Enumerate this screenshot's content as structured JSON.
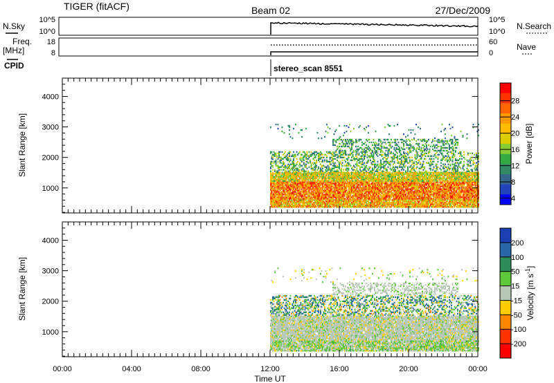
{
  "header": {
    "left": "TIGER (fitACF)",
    "center": "Beam 02",
    "right": "27/Dec/2009"
  },
  "strips": {
    "nsky": {
      "label": "N.Sky",
      "left_top_tick": "10^5",
      "left_bottom_tick": "10^0",
      "right_label": "N.Search",
      "right_top_tick": "10^5",
      "right_bottom_tick": "10^0"
    },
    "freq": {
      "label_line1": "Freq.",
      "label_line2": "[MHz]",
      "left_top_tick": "18",
      "left_bottom_tick": "8",
      "right_label": "Nave",
      "right_top_tick": "60",
      "right_bottom_tick": "0"
    },
    "cpid": {
      "label": "CPID",
      "program": "stereo_scan 8551"
    }
  },
  "chart_data": [
    {
      "type": "heatmap",
      "name": "Power",
      "ylabel": "Slant Range [km]",
      "ylim": [
        180,
        4600
      ],
      "yticks": [
        "1000",
        "2000",
        "3000",
        "4000"
      ],
      "colorbar_label": "Power [dB]",
      "colorbar_ticks": [
        "28",
        "24",
        "20",
        "16",
        "12",
        "8",
        "4"
      ],
      "colorbar_colors": [
        "#ff0000",
        "#ff3300",
        "#ff6600",
        "#ff9900",
        "#ffbb00",
        "#ddcc00",
        "#88cc33",
        "#33aa44",
        "#338866",
        "#336688",
        "#2244bb",
        "#0000ff"
      ],
      "data_start_ut": "12:00",
      "data_end_ut": "24:00",
      "echo_bands": [
        {
          "range_km": [
            350,
            1500
          ],
          "typical_db": 26
        },
        {
          "range_km": [
            1500,
            2200
          ],
          "typical_db": 12
        },
        {
          "range_km": [
            2200,
            2600
          ],
          "typical_db": 9
        }
      ]
    },
    {
      "type": "heatmap",
      "name": "Velocity",
      "ylabel": "Slant Range [km]",
      "ylim": [
        180,
        4600
      ],
      "yticks": [
        "1000",
        "2000",
        "3000",
        "4000"
      ],
      "colorbar_label": "Velocity [m s^-1]",
      "colorbar_ticks": [
        "200",
        "100",
        "50",
        "15",
        "-15",
        "-50",
        "-100",
        "-200"
      ],
      "colorbar_colors": [
        "#1a3fb0",
        "#2a66aa",
        "#2e8c5a",
        "#5cc83a",
        "#b8c8b8",
        "#ffcc00",
        "#ff8800",
        "#ff3300",
        "#ff0000"
      ],
      "data_start_ut": "12:00",
      "data_end_ut": "24:00",
      "echo_bands": [
        {
          "range_km": [
            350,
            1500
          ],
          "typical_ms": 0
        },
        {
          "range_km": [
            1500,
            2200
          ],
          "typical_ms": 30
        },
        {
          "range_km": [
            2200,
            2600
          ],
          "typical_ms": 0
        }
      ]
    }
  ],
  "xaxis": {
    "label": "Time UT",
    "ticks": [
      "00:00",
      "04:00",
      "08:00",
      "12:00",
      "16:00",
      "20:00",
      "00:00"
    ]
  }
}
